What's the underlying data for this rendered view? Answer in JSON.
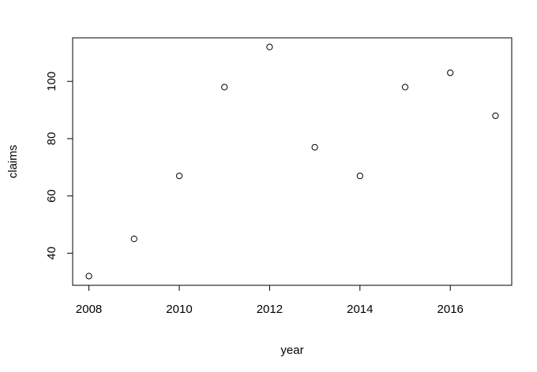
{
  "chart_data": {
    "type": "scatter",
    "title": "",
    "xlabel": "year",
    "ylabel": "claims",
    "x": [
      2008,
      2009,
      2010,
      2011,
      2012,
      2013,
      2014,
      2015,
      2016,
      2017
    ],
    "y": [
      32,
      45,
      67,
      98,
      112,
      77,
      67,
      98,
      103,
      88
    ],
    "xlim": [
      2007.64,
      2017.36
    ],
    "ylim": [
      28.8,
      115.2
    ],
    "xticks": [
      2008,
      2010,
      2012,
      2014,
      2016
    ],
    "yticks": [
      40,
      60,
      80,
      100
    ],
    "grid": false,
    "marker": "open-circle",
    "colors": {
      "point": "#000000",
      "axis": "#000000",
      "background": "#ffffff"
    }
  }
}
